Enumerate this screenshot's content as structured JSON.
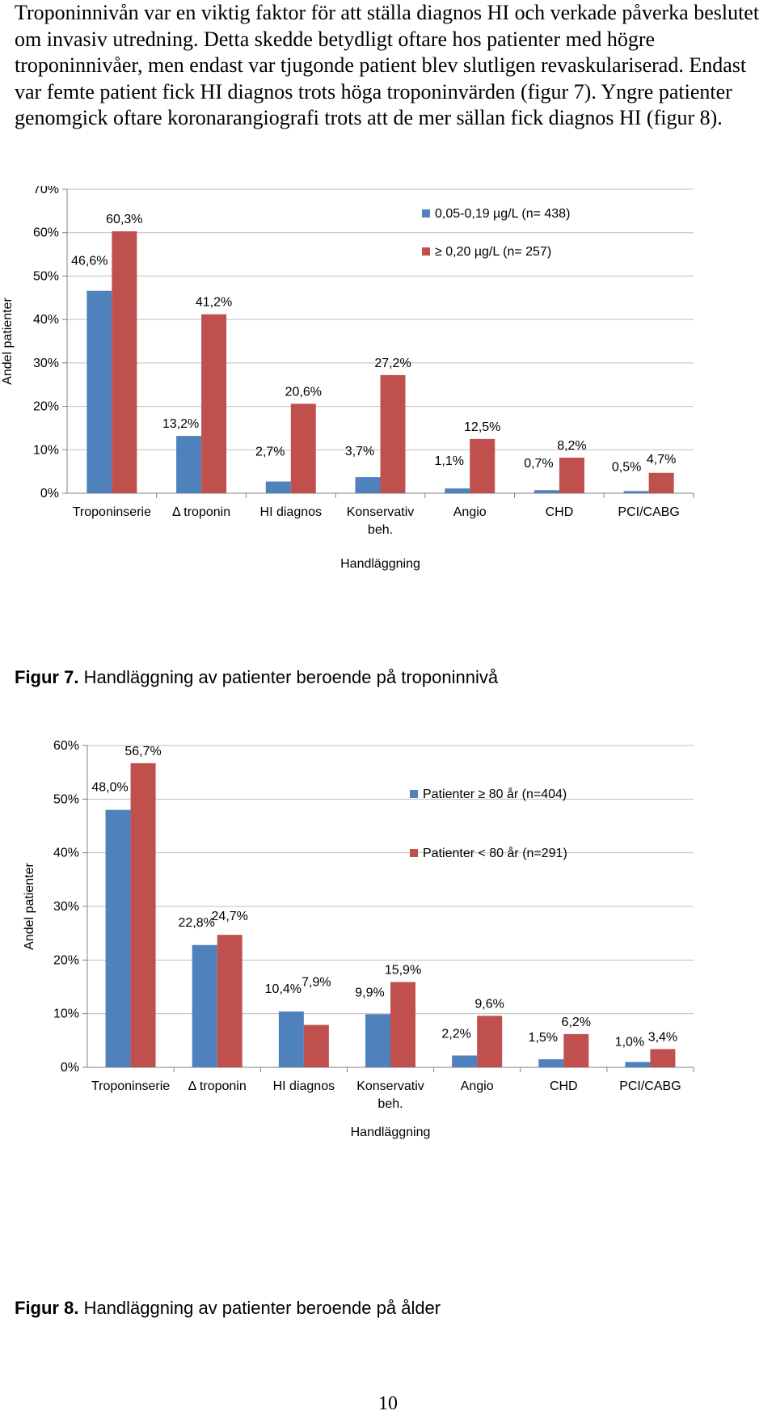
{
  "paragraph": "Troponinnivån var en viktig faktor för att ställa diagnos HI och verkade påverka beslutet om invasiv utredning. Detta skedde betydligt oftare hos patienter med högre troponinnivåer, men endast var tjugonde patient blev slutligen revaskulariserad. Endast var femte patient fick HI diagnos trots höga troponinvärden (figur 7). Yngre patienter genomgick oftare koronarangiografi trots att de mer sällan fick diagnos HI (figur 8).",
  "colors": {
    "blue": "#4f81bd",
    "red": "#c0504d",
    "grid": "#bfbfbf",
    "axis": "#808080"
  },
  "figure7": {
    "caption_label": "Figur 7.",
    "caption_text": " Handläggning av patienter beroende på troponinnivå"
  },
  "figure8": {
    "caption_label": "Figur 8.",
    "caption_text": " Handläggning av patienter beroende på ålder"
  },
  "page_number": "10",
  "chart_data": [
    {
      "type": "bar",
      "title": "",
      "xlabel": "Handläggning",
      "ylabel": "Andel patienter",
      "ylim": [
        0,
        70
      ],
      "yticks": [
        "0%",
        "10%",
        "20%",
        "30%",
        "40%",
        "50%",
        "60%",
        "70%"
      ],
      "categories": [
        [
          "Troponinserie"
        ],
        [
          "Δ troponin"
        ],
        [
          "HI diagnos"
        ],
        [
          "Konservativ",
          "beh."
        ],
        [
          "Angio"
        ],
        [
          "CHD"
        ],
        [
          "PCI/CABG"
        ]
      ],
      "series": [
        {
          "name": "0,05-0,19 µg/L (n= 438)",
          "values": [
            46.6,
            13.2,
            2.7,
            3.7,
            1.1,
            0.7,
            0.5
          ],
          "labels": [
            "46,6%",
            "13,2%",
            "2,7%",
            "3,7%",
            "1,1%",
            "0,7%",
            "0,5%"
          ]
        },
        {
          "name": "≥ 0,20 µg/L (n= 257)",
          "values": [
            60.3,
            41.2,
            20.6,
            27.2,
            12.5,
            8.2,
            4.7
          ],
          "labels": [
            "60,3%",
            "41,2%",
            "20,6%",
            "27,2%",
            "12,5%",
            "8,2%",
            "4,7%"
          ]
        }
      ],
      "grid": true,
      "legend": "top-right"
    },
    {
      "type": "bar",
      "title": "",
      "xlabel": "Handläggning",
      "ylabel": "Andel patienter",
      "ylim": [
        0,
        60
      ],
      "yticks": [
        "0%",
        "10%",
        "20%",
        "30%",
        "40%",
        "50%",
        "60%"
      ],
      "categories": [
        [
          "Troponinserie"
        ],
        [
          "Δ troponin"
        ],
        [
          "HI diagnos"
        ],
        [
          "Konservativ",
          "beh."
        ],
        [
          "Angio"
        ],
        [
          "CHD"
        ],
        [
          "PCI/CABG"
        ]
      ],
      "series": [
        {
          "name": "Patienter ≥ 80 år (n=404)",
          "values": [
            48.0,
            22.8,
            10.4,
            9.9,
            2.2,
            1.5,
            1.0
          ],
          "labels": [
            "48,0%",
            "22,8%",
            "10,4%",
            "9,9%",
            "2,2%",
            "1,5%",
            "1,0%"
          ]
        },
        {
          "name": "Patienter < 80 år (n=291)",
          "values": [
            56.7,
            24.7,
            7.9,
            15.9,
            9.6,
            6.2,
            3.4
          ],
          "labels": [
            "56,7%",
            "24,7%",
            "7,9%",
            "15,9%",
            "9,6%",
            "6,2%",
            "3,4%"
          ]
        }
      ],
      "grid": true,
      "legend": "middle-right"
    }
  ]
}
